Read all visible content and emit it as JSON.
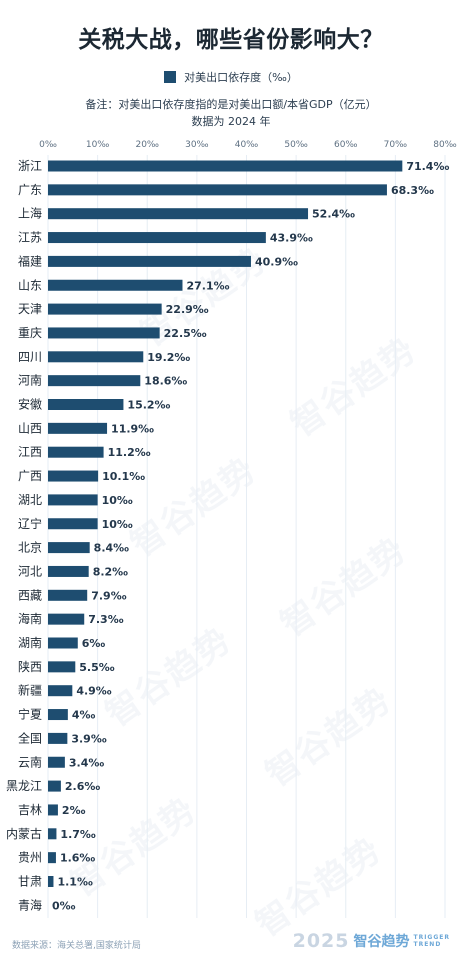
{
  "header": {
    "title": "关税大战，哪些省份影响大？",
    "legend_label": "对美出口依存度（‰）",
    "note": "备注：对美出口依存度指的是对美出口额/本省GDP（亿元）",
    "data_year": "数据为 2024 年"
  },
  "footer": {
    "source": "数据来源：海关总署,国家统计局",
    "year": "2025",
    "brand": "智谷趋势",
    "brand_en_1": "TRIGGER",
    "brand_en_2": "TREND"
  },
  "watermark_text": "智谷趋势",
  "chart_data": {
    "type": "bar",
    "orientation": "horizontal",
    "title": "关税大战，哪些省份影响大？",
    "series": [
      {
        "name": "对美出口依存度（‰）",
        "color": "#1e4d70"
      }
    ],
    "xlim": [
      0,
      80
    ],
    "xticks": [
      0,
      10,
      20,
      30,
      40,
      50,
      60,
      70,
      80
    ],
    "xtick_labels": [
      "0‰",
      "10‰",
      "20‰",
      "30‰",
      "40‰",
      "50‰",
      "60‰",
      "70‰",
      "80‰"
    ],
    "categories": [
      "浙江",
      "广东",
      "上海",
      "江苏",
      "福建",
      "山东",
      "天津",
      "重庆",
      "四川",
      "河南",
      "安徽",
      "山西",
      "江西",
      "广西",
      "湖北",
      "辽宁",
      "北京",
      "河北",
      "西藏",
      "海南",
      "湖南",
      "陕西",
      "新疆",
      "宁夏",
      "全国",
      "云南",
      "黑龙江",
      "吉林",
      "内蒙古",
      "贵州",
      "甘肃",
      "青海"
    ],
    "values": [
      71.4,
      68.3,
      52.4,
      43.9,
      40.9,
      27.1,
      22.9,
      22.5,
      19.2,
      18.6,
      15.2,
      11.9,
      11.2,
      10.1,
      10,
      10,
      8.4,
      8.2,
      7.9,
      7.3,
      6,
      5.5,
      4.9,
      4,
      3.9,
      3.4,
      2.6,
      2,
      1.7,
      1.6,
      1.1,
      0
    ],
    "value_labels": [
      "71.4‰",
      "68.3‰",
      "52.4‰",
      "43.9‰",
      "40.9‰",
      "27.1‰",
      "22.9‰",
      "22.5‰",
      "19.2‰",
      "18.6‰",
      "15.2‰",
      "11.9‰",
      "11.2‰",
      "10.1‰",
      "10‰",
      "10‰",
      "8.4‰",
      "8.2‰",
      "7.9‰",
      "7.3‰",
      "6‰",
      "5.5‰",
      "4.9‰",
      "4‰",
      "3.9‰",
      "3.4‰",
      "2.6‰",
      "2‰",
      "1.7‰",
      "1.6‰",
      "1.1‰",
      "0‰"
    ],
    "grid": true,
    "legend_position": "top-center"
  }
}
